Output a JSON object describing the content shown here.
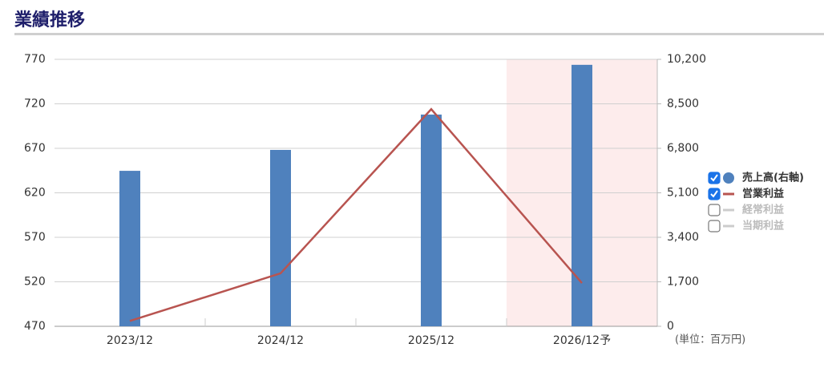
{
  "chart_data": {
    "type": "combo",
    "title": "業績推移",
    "categories": [
      "2023/12",
      "2024/12",
      "2025/12",
      "2026/12予"
    ],
    "forecast": [
      false,
      false,
      false,
      true
    ],
    "series": [
      {
        "name": "売上高(右軸)",
        "type": "bar",
        "axis": "y2",
        "color": "#4f81bd",
        "values": [
          5940,
          6740,
          8090,
          9990
        ]
      },
      {
        "name": "営業利益",
        "type": "line",
        "axis": "y",
        "color": "#b85450",
        "values": [
          476,
          529.5,
          714,
          518.6
        ]
      }
    ],
    "inactive_series": [
      {
        "name": "経常利益",
        "color": "#cccccc"
      },
      {
        "name": "当期利益",
        "color": "#cccccc"
      }
    ],
    "ylim": [
      470,
      770
    ],
    "yticks": [
      470,
      520,
      570,
      620,
      670,
      720,
      770
    ],
    "y2lim": [
      0,
      10200
    ],
    "y2ticks": [
      0,
      {
        "value": 1700,
        "label": "1,700"
      },
      {
        "value": 3400,
        "label": "3,400"
      },
      {
        "value": 5100,
        "label": "5,100"
      },
      {
        "value": 6800,
        "label": "6,800"
      },
      {
        "value": 8500,
        "label": "8,500"
      },
      {
        "value": 10200,
        "label": "10,200"
      }
    ],
    "grid": true,
    "unit_note": "(単位：百万円)"
  }
}
